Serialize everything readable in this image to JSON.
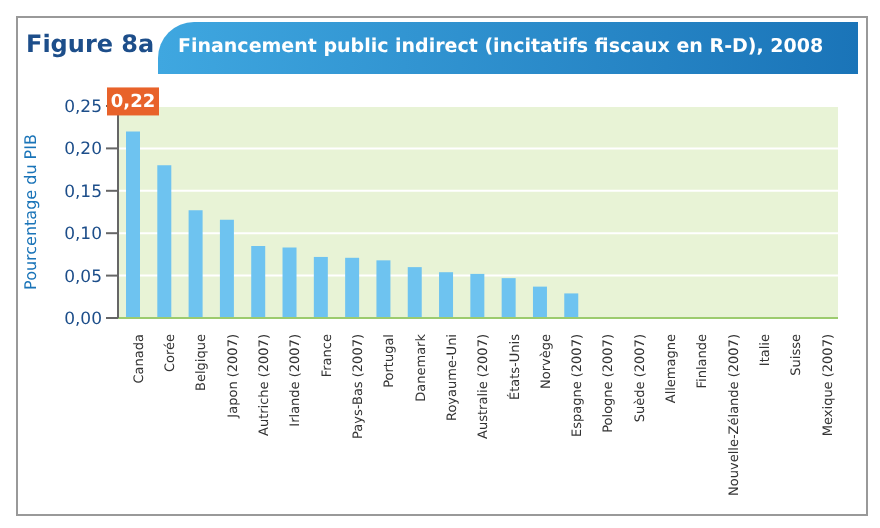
{
  "chart_data": {
    "type": "bar",
    "title": "Financement public indirect (incitatifs fiscaux en R-D), 2008",
    "subtitle": "Figure 8a",
    "ylabel": "Pourcentage du PIB",
    "categories": [
      "Canada",
      "Corée",
      "Belgique",
      "Japon (2007)",
      "Autriche (2007)",
      "Irlande (2007)",
      "France",
      "Pays-Bas (2007)",
      "Portugal",
      "Danemark",
      "Royaume-Uni",
      "Australie (2007)",
      "États-Unis",
      "Norvège",
      "Espagne (2007)",
      "Pologne (2007)",
      "Suède (2007)",
      "Allemagne",
      "Finlande",
      "Nouvelle-Zélande (2007)",
      "Italie",
      "Suisse",
      "Mexique (2007)"
    ],
    "values": [
      0.22,
      0.18,
      0.127,
      0.116,
      0.085,
      0.083,
      0.072,
      0.071,
      0.068,
      0.06,
      0.054,
      0.052,
      0.047,
      0.037,
      0.029,
      0,
      0,
      0,
      0,
      0,
      0,
      0,
      0
    ],
    "value_labels": [
      "0,22",
      null,
      null,
      null,
      null,
      null,
      null,
      null,
      null,
      null,
      null,
      null,
      null,
      null,
      null,
      null,
      null,
      null,
      null,
      null,
      null,
      null,
      null
    ],
    "color": "#6ec3f0",
    "ylim": [
      0,
      0.25
    ],
    "yticks": [
      {
        "value": 0,
        "label": "0,00"
      },
      {
        "value": 0.05,
        "label": "0,05"
      },
      {
        "value": 0.1,
        "label": "0,10"
      },
      {
        "value": 0.15,
        "label": "0,15"
      },
      {
        "value": 0.2,
        "label": "0,20"
      },
      {
        "value": 0.25,
        "label": "0,25"
      }
    ],
    "grid": "y"
  }
}
